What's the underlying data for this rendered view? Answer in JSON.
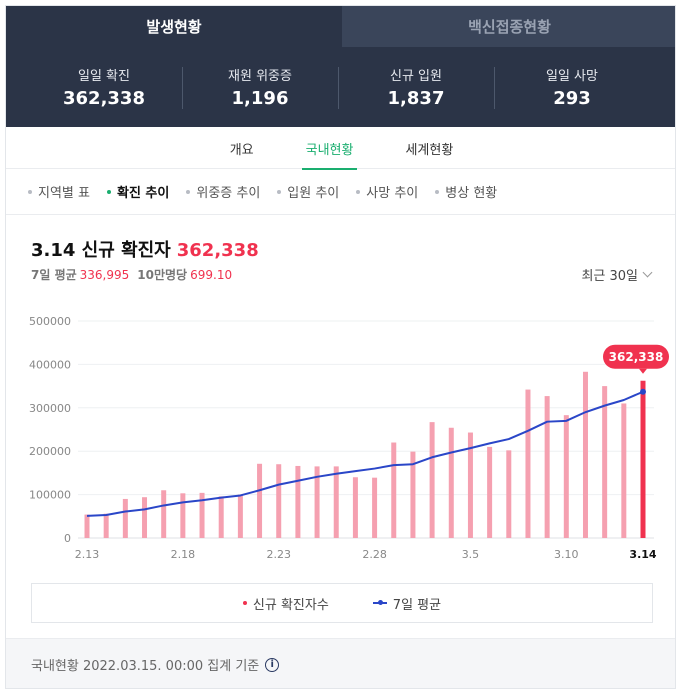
{
  "top_tabs": [
    {
      "label": "발생현황"
    },
    {
      "label": "백신접종현황"
    }
  ],
  "stats": [
    {
      "label": "일일 확진",
      "value": "362,338"
    },
    {
      "label": "재원 위중증",
      "value": "1,196"
    },
    {
      "label": "신규 입원",
      "value": "1,837"
    },
    {
      "label": "일일 사망",
      "value": "293"
    }
  ],
  "sub_tabs": [
    {
      "label": "개요"
    },
    {
      "label": "국내현황"
    },
    {
      "label": "세계현황"
    }
  ],
  "categories": [
    {
      "label": "지역별 표"
    },
    {
      "label": "확진 추이"
    },
    {
      "label": "위중증 추이"
    },
    {
      "label": "입원 추이"
    },
    {
      "label": "사망 추이"
    },
    {
      "label": "병상 현황"
    }
  ],
  "heading": {
    "title": "3.14 신규 확진자",
    "value": "362,338",
    "avg_label": "7일 평균",
    "avg_value": "336,995",
    "per_label": "10만명당",
    "per_value": "699.10",
    "period": "최근 30일"
  },
  "chart_data": {
    "type": "bar",
    "x": [
      "2.13",
      "2.14",
      "2.15",
      "2.16",
      "2.17",
      "2.18",
      "2.19",
      "2.20",
      "2.21",
      "2.22",
      "2.23",
      "2.24",
      "2.25",
      "2.26",
      "2.27",
      "2.28",
      "3.1",
      "3.2",
      "3.3",
      "3.4",
      "3.5",
      "3.6",
      "3.7",
      "3.8",
      "3.9",
      "3.10",
      "3.11",
      "3.12",
      "3.13",
      "3.14"
    ],
    "x_tick_labels": [
      "2.13",
      "2.18",
      "2.23",
      "2.28",
      "3.5",
      "3.10",
      "3.14"
    ],
    "series": [
      {
        "name": "신규 확진자수",
        "type": "bar",
        "color": "#f5a0b0",
        "values": [
          54000,
          56000,
          90000,
          94000,
          110000,
          103000,
          104000,
          96000,
          100000,
          171000,
          170000,
          166000,
          165000,
          165000,
          140000,
          139000,
          220000,
          199000,
          267000,
          254000,
          243000,
          210000,
          202000,
          342000,
          327000,
          283000,
          383000,
          350000,
          310000,
          362338
        ]
      },
      {
        "name": "7일 평균",
        "type": "line",
        "color": "#2a46c8",
        "values": [
          51000,
          53000,
          61000,
          66000,
          75000,
          82000,
          87000,
          93000,
          98000,
          110000,
          123000,
          132000,
          141000,
          148000,
          154000,
          160000,
          168000,
          170000,
          186000,
          197000,
          207000,
          218000,
          228000,
          247000,
          268000,
          270000,
          290000,
          305000,
          318000,
          336995
        ]
      }
    ],
    "ylim": [
      0,
      500000
    ],
    "yticks": [
      "0",
      "100000",
      "200000",
      "300000",
      "400000",
      "500000"
    ],
    "highlight_label": "362,338",
    "highlight_color": "#f0324f",
    "grid": true
  },
  "legend": [
    {
      "label": "신규 확진자수"
    },
    {
      "label": "7일 평균"
    }
  ],
  "footer": {
    "text": "국내현황 2022.03.15. 00:00 집계 기준",
    "icon_text": "i"
  }
}
